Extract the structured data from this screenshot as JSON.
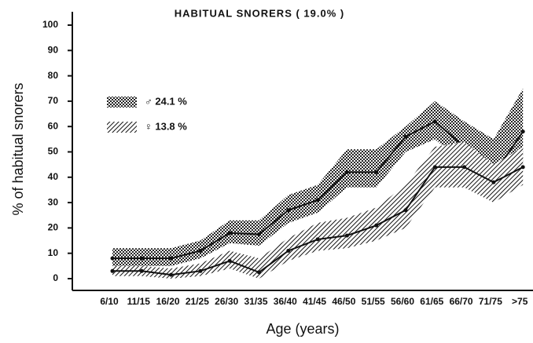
{
  "chart_data": {
    "type": "line",
    "title": "HABITUAL SNORERS ( 19.0% )",
    "y_label": "% of habitual snorers",
    "x_label": "Age (years)",
    "categories": [
      "6/10",
      "11/15",
      "16/20",
      "21/25",
      "26/30",
      "31/35",
      "36/40",
      "41/45",
      "46/50",
      "51/55",
      "56/60",
      "61/65",
      "66/70",
      "71/75",
      ">75"
    ],
    "ylim": [
      0,
      100
    ],
    "yticks": [
      0,
      10,
      20,
      30,
      40,
      50,
      60,
      70,
      80,
      90,
      100
    ],
    "series": [
      {
        "name": "♂ 24.1 %",
        "color": "#111111",
        "band": "dots",
        "values": [
          8,
          8,
          8,
          11,
          18,
          17.5,
          27,
          31,
          42,
          42,
          56,
          62,
          52,
          41,
          58
        ],
        "upper": [
          12,
          12,
          12,
          15,
          23,
          23,
          33,
          37,
          51,
          51,
          60,
          70,
          62,
          55,
          75
        ],
        "lower": [
          5,
          5,
          5,
          8,
          14,
          13,
          22,
          26,
          36,
          36,
          50,
          55,
          45,
          30,
          45
        ]
      },
      {
        "name": "♀ 13.8 %",
        "color": "#111111",
        "band": "hatch",
        "values": [
          3,
          3,
          1.5,
          3,
          7,
          2.5,
          11,
          15.5,
          17,
          21,
          27,
          44,
          44,
          38,
          44
        ],
        "upper": [
          5,
          5,
          4,
          6,
          11,
          8,
          16,
          22,
          24,
          28,
          37,
          52,
          54,
          45,
          52
        ],
        "lower": [
          1,
          1,
          0,
          1,
          4,
          0,
          7,
          11,
          12,
          15,
          20,
          36,
          36,
          30,
          37
        ]
      }
    ]
  }
}
